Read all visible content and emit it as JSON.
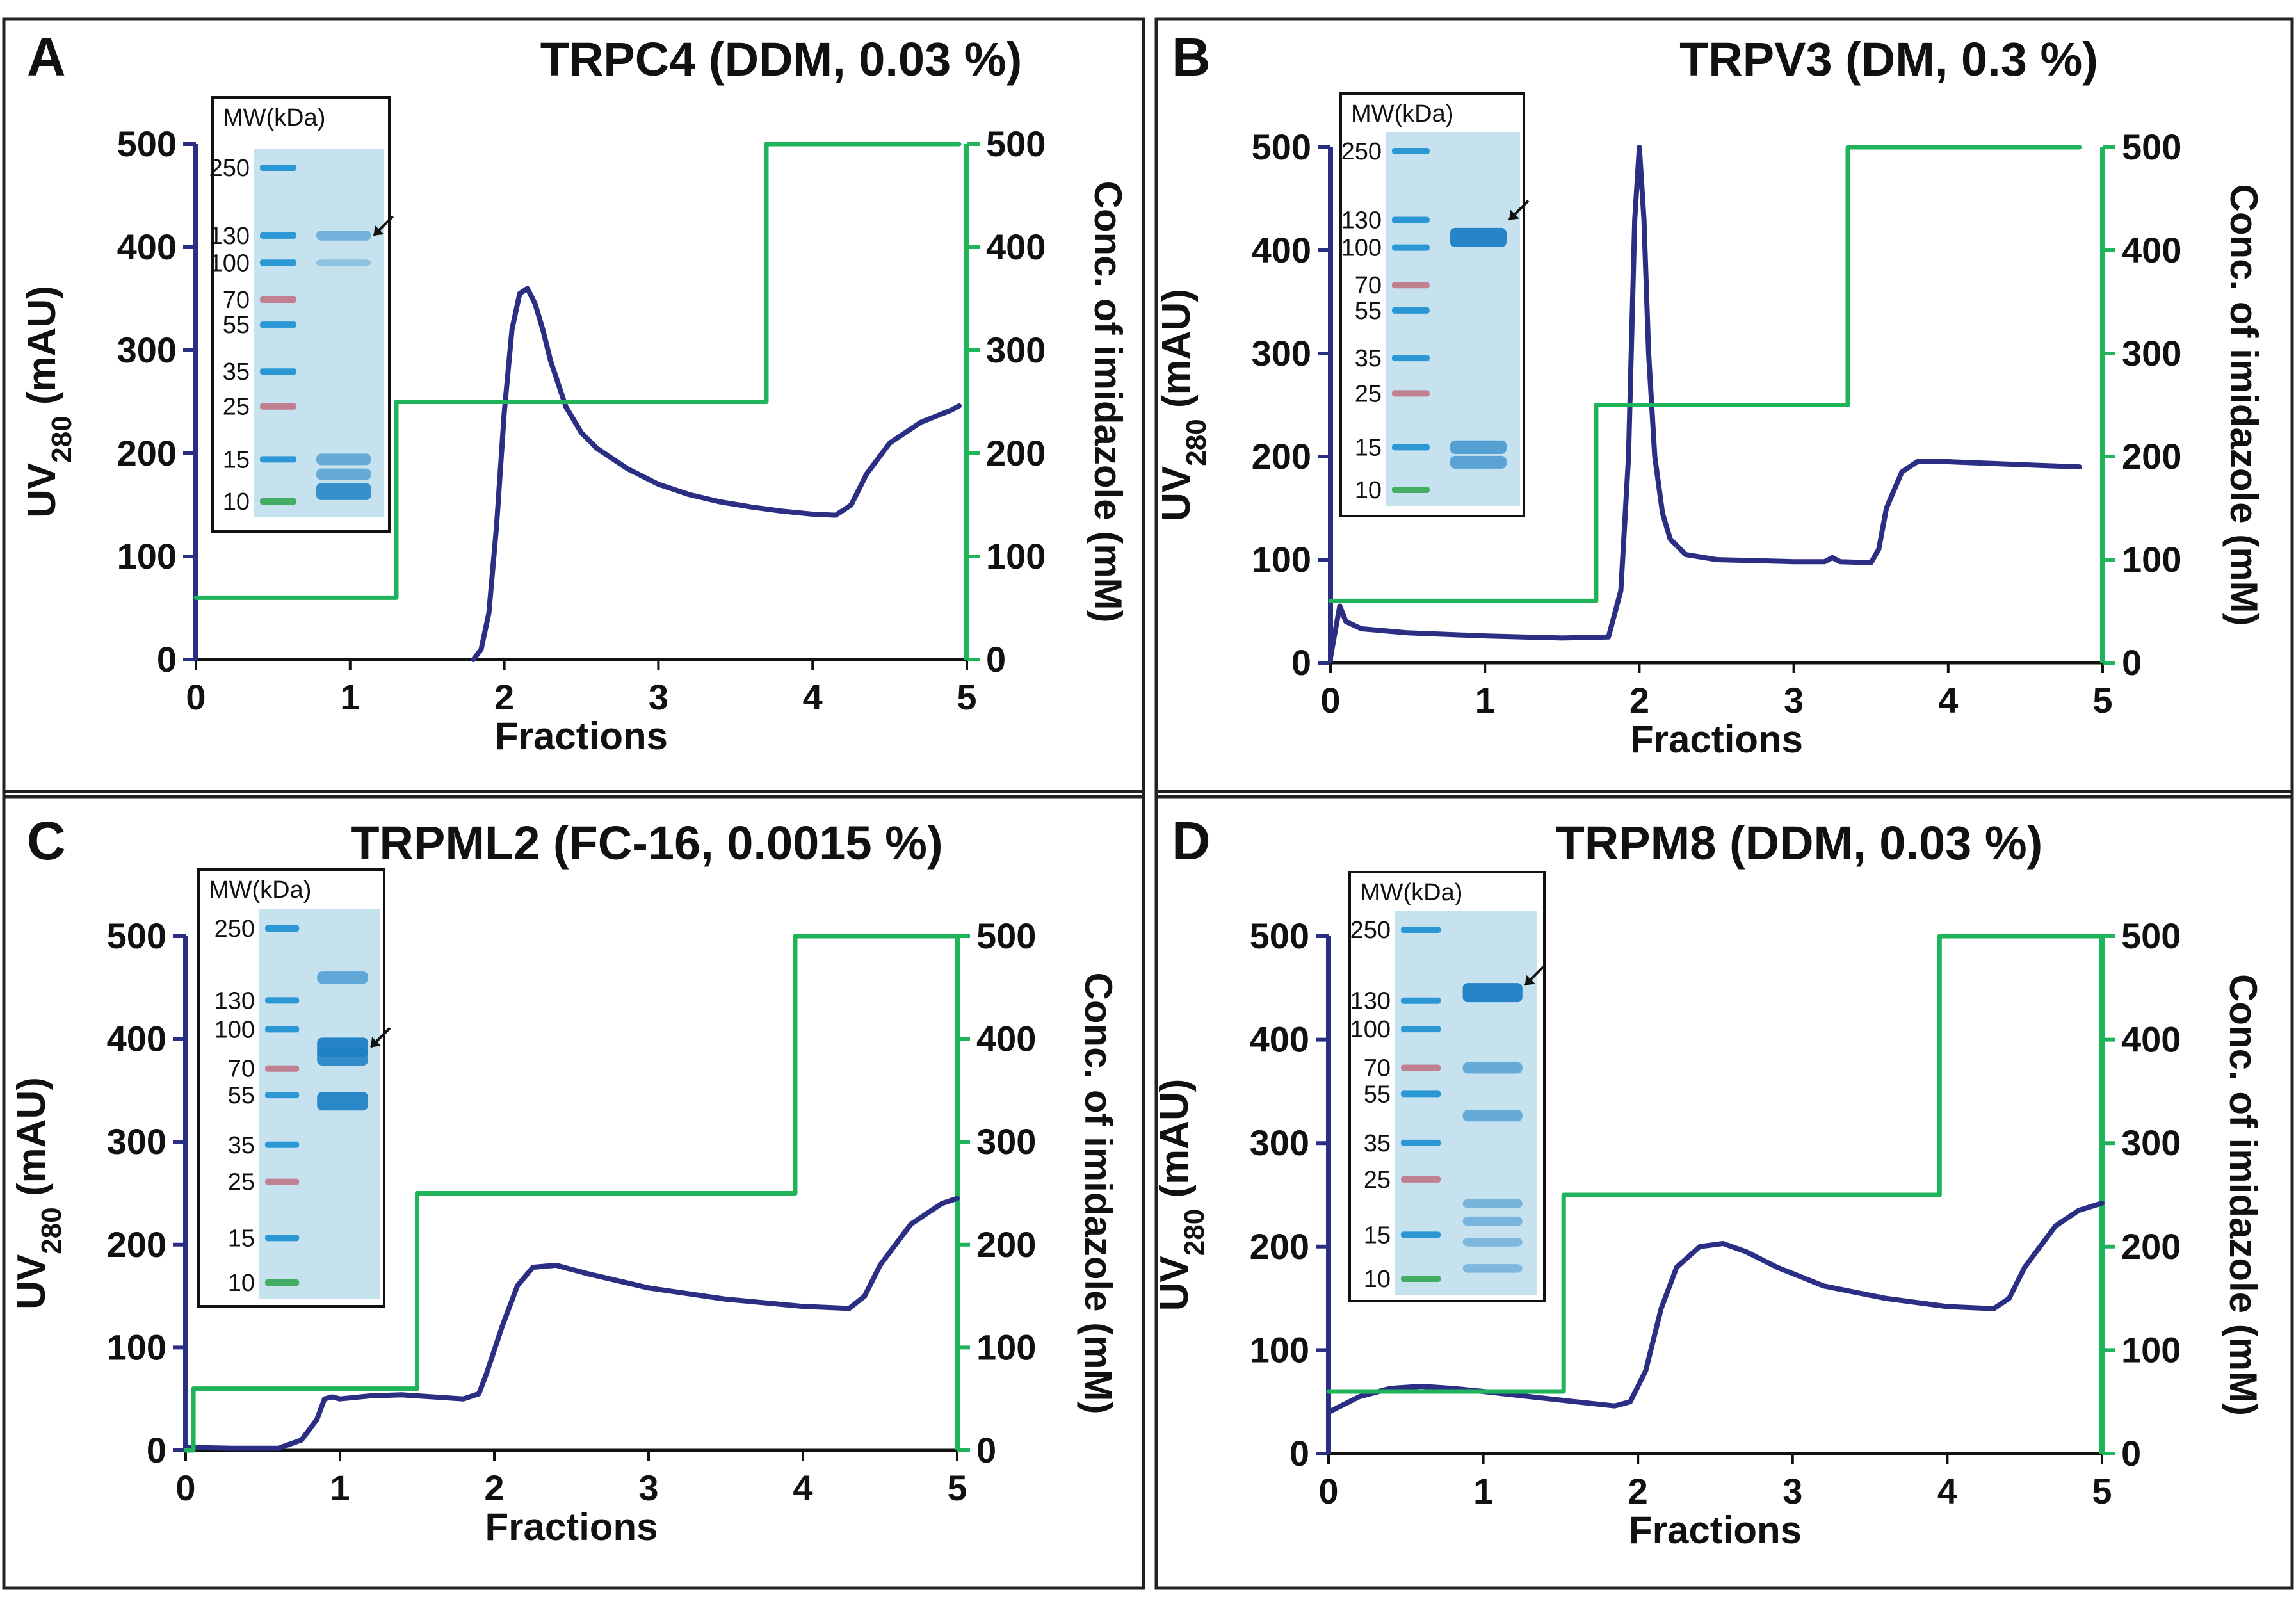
{
  "figure": {
    "colors": {
      "uv": "#2a2f84",
      "imidazole": "#1fb45a",
      "frame": "#222222",
      "gel_bg": "#c6e2ef",
      "ladder_blue": "#1a8fd0",
      "ladder_purple": "#8a6f9f",
      "ladder_pink": "#c07585",
      "ladder_green": "#34a853"
    }
  },
  "chart_data": [
    {
      "type": "line",
      "panel_letter": "A",
      "title": "TRPC4 (DDM, 0.03 %)",
      "xlabel": "Fractions",
      "ylabel_left_main": "UV",
      "ylabel_left_sub": "280",
      "ylabel_left_unit": " (mAU)",
      "ylabel_right": "Conc. of imidazole (mM)",
      "xlim": [
        0,
        5
      ],
      "ylim": [
        0,
        500
      ],
      "ylim_right": [
        0,
        500
      ],
      "xticks": [
        0,
        1,
        2,
        3,
        4,
        5
      ],
      "yticks": [
        0,
        100,
        200,
        300,
        400,
        500
      ],
      "grid": false,
      "series": [
        {
          "name": "UV280 (mAU)",
          "axis": "left",
          "x": [
            0.0,
            1.8,
            1.85,
            1.9,
            1.95,
            2.0,
            2.05,
            2.1,
            2.15,
            2.2,
            2.25,
            2.3,
            2.4,
            2.5,
            2.6,
            2.8,
            3.0,
            3.2,
            3.4,
            3.6,
            3.8,
            4.0,
            4.15,
            4.25,
            4.35,
            4.5,
            4.7,
            4.9,
            4.95
          ],
          "values": [
            null,
            0,
            10,
            45,
            130,
            240,
            320,
            355,
            360,
            345,
            320,
            290,
            245,
            220,
            205,
            185,
            170,
            160,
            153,
            148,
            144,
            141,
            140,
            150,
            180,
            210,
            230,
            242,
            246
          ]
        },
        {
          "name": "Imidazole (mM)",
          "axis": "right",
          "step": true,
          "x": [
            0,
            1.3,
            3.7,
            4.95
          ],
          "values": [
            60,
            250,
            500,
            500
          ]
        }
      ],
      "gel": {
        "header": "MW(kDa)",
        "markers": [
          "250",
          "130",
          "100",
          "70",
          "55",
          "35",
          "25",
          "15",
          "10"
        ],
        "marker_kda": [
          250,
          130,
          100,
          70,
          55,
          35,
          25,
          15,
          10
        ],
        "arrow_kda": 130,
        "sample_bands": [
          {
            "kda": 130,
            "strength": 0.35
          },
          {
            "kda": 100,
            "strength": 0.1
          },
          {
            "kda": 15,
            "strength": 0.45
          },
          {
            "kda": 13,
            "strength": 0.45
          },
          {
            "kda": 11,
            "strength": 0.85
          }
        ]
      }
    },
    {
      "type": "line",
      "panel_letter": "B",
      "title": "TRPV3 (DM, 0.3 %)",
      "xlabel": "Fractions",
      "ylabel_left_main": "UV",
      "ylabel_left_sub": "280",
      "ylabel_left_unit": " (mAU)",
      "ylabel_right": "Conc. of imidazole (mM)",
      "xlim": [
        0,
        5
      ],
      "ylim": [
        0,
        500
      ],
      "ylim_right": [
        0,
        500
      ],
      "xticks": [
        0,
        1,
        2,
        3,
        4,
        5
      ],
      "yticks": [
        0,
        100,
        200,
        300,
        400,
        500
      ],
      "grid": false,
      "series": [
        {
          "name": "UV280 (mAU)",
          "axis": "left",
          "x": [
            0.0,
            0.03,
            0.06,
            0.1,
            0.2,
            0.5,
            1.0,
            1.5,
            1.8,
            1.88,
            1.93,
            1.97,
            2.0,
            2.03,
            2.06,
            2.1,
            2.15,
            2.2,
            2.3,
            2.5,
            3.0,
            3.2,
            3.25,
            3.3,
            3.5,
            3.55,
            3.6,
            3.7,
            3.8,
            4.0,
            4.5,
            4.85
          ],
          "values": [
            5,
            30,
            55,
            40,
            33,
            29,
            26,
            24,
            25,
            70,
            200,
            430,
            500,
            430,
            300,
            200,
            145,
            120,
            105,
            100,
            98,
            98,
            102,
            98,
            97,
            110,
            150,
            185,
            195,
            195,
            192,
            190
          ]
        },
        {
          "name": "Imidazole (mM)",
          "axis": "right",
          "step": true,
          "x": [
            0,
            1.72,
            3.35,
            4.85
          ],
          "values": [
            60,
            250,
            500,
            500
          ]
        }
      ],
      "gel": {
        "header": "MW(kDa)",
        "markers": [
          "250",
          "130",
          "100",
          "70",
          "55",
          "35",
          "25",
          "15",
          "10"
        ],
        "marker_kda": [
          250,
          130,
          100,
          70,
          55,
          35,
          25,
          15,
          10
        ],
        "arrow_kda": 130,
        "sample_bands": [
          {
            "kda": 110,
            "strength": 1.0
          },
          {
            "kda": 15,
            "strength": 0.6
          },
          {
            "kda": 13,
            "strength": 0.55
          }
        ]
      }
    },
    {
      "type": "line",
      "panel_letter": "C",
      "title": "TRPML2 (FC-16, 0.0015 %)",
      "xlabel": "Fractions",
      "ylabel_left_main": "UV",
      "ylabel_left_sub": "280",
      "ylabel_left_unit": " (mAU)",
      "ylabel_right": "Conc. of imidazole (mM)",
      "xlim": [
        0,
        5
      ],
      "ylim": [
        0,
        500
      ],
      "ylim_right": [
        0,
        500
      ],
      "xticks": [
        0,
        1,
        2,
        3,
        4,
        5
      ],
      "yticks": [
        0,
        100,
        200,
        300,
        400,
        500
      ],
      "grid": false,
      "series": [
        {
          "name": "UV280 (mAU)",
          "axis": "left",
          "x": [
            0.0,
            0.3,
            0.6,
            0.75,
            0.85,
            0.9,
            0.95,
            1.0,
            1.2,
            1.4,
            1.6,
            1.8,
            1.9,
            1.95,
            2.05,
            2.15,
            2.25,
            2.4,
            2.6,
            3.0,
            3.5,
            4.0,
            4.3,
            4.4,
            4.5,
            4.7,
            4.9,
            5.0
          ],
          "values": [
            3,
            2,
            2,
            10,
            30,
            50,
            52,
            50,
            53,
            54,
            52,
            50,
            55,
            75,
            120,
            160,
            178,
            180,
            172,
            158,
            147,
            140,
            138,
            150,
            180,
            220,
            240,
            245
          ]
        },
        {
          "name": "Imidazole (mM)",
          "axis": "right",
          "step": true,
          "x": [
            0,
            0.05,
            1.5,
            3.95,
            5.0
          ],
          "values": [
            0,
            60,
            250,
            500,
            500
          ]
        }
      ],
      "gel": {
        "header": "MW(kDa)",
        "markers": [
          "250",
          "130",
          "100",
          "70",
          "55",
          "35",
          "25",
          "15",
          "10"
        ],
        "marker_kda": [
          250,
          130,
          100,
          70,
          55,
          35,
          25,
          15,
          10
        ],
        "arrow_kda": 85,
        "sample_bands": [
          {
            "kda": 160,
            "strength": 0.5
          },
          {
            "kda": 85,
            "strength": 1.0
          },
          {
            "kda": 78,
            "strength": 0.9
          },
          {
            "kda": 52,
            "strength": 0.95
          }
        ]
      }
    },
    {
      "type": "line",
      "panel_letter": "D",
      "title": "TRPM8 (DDM, 0.03 %)",
      "xlabel": "Fractions",
      "ylabel_left_main": "UV",
      "ylabel_left_sub": "280",
      "ylabel_left_unit": " (mAU)",
      "ylabel_right": "Conc. of imidazole (mM)",
      "xlim": [
        0,
        5
      ],
      "ylim": [
        0,
        500
      ],
      "ylim_right": [
        0,
        500
      ],
      "xticks": [
        0,
        1,
        2,
        3,
        4,
        5
      ],
      "yticks": [
        0,
        100,
        200,
        300,
        400,
        500
      ],
      "grid": false,
      "series": [
        {
          "name": "UV280 (mAU)",
          "axis": "left",
          "x": [
            0.0,
            0.2,
            0.4,
            0.6,
            0.8,
            1.0,
            1.3,
            1.6,
            1.85,
            1.95,
            2.05,
            2.15,
            2.25,
            2.4,
            2.55,
            2.7,
            2.9,
            3.2,
            3.6,
            4.0,
            4.3,
            4.4,
            4.5,
            4.7,
            4.85,
            5.0
          ],
          "values": [
            40,
            55,
            63,
            65,
            63,
            60,
            55,
            50,
            46,
            50,
            80,
            140,
            180,
            200,
            203,
            195,
            180,
            162,
            150,
            142,
            140,
            150,
            180,
            220,
            235,
            242
          ]
        },
        {
          "name": "Imidazole (mM)",
          "axis": "right",
          "step": true,
          "x": [
            0,
            1.52,
            3.95,
            5.0
          ],
          "values": [
            60,
            250,
            500,
            500
          ]
        }
      ],
      "gel": {
        "header": "MW(kDa)",
        "markers": [
          "250",
          "130",
          "100",
          "70",
          "55",
          "35",
          "25",
          "15",
          "10"
        ],
        "marker_kda": [
          250,
          130,
          100,
          70,
          55,
          35,
          25,
          15,
          10
        ],
        "arrow_kda": 150,
        "sample_bands": [
          {
            "kda": 140,
            "strength": 1.0
          },
          {
            "kda": 70,
            "strength": 0.45
          },
          {
            "kda": 45,
            "strength": 0.45
          },
          {
            "kda": 20,
            "strength": 0.3
          },
          {
            "kda": 17,
            "strength": 0.3
          },
          {
            "kda": 14,
            "strength": 0.25
          },
          {
            "kda": 11,
            "strength": 0.25
          }
        ]
      }
    }
  ]
}
